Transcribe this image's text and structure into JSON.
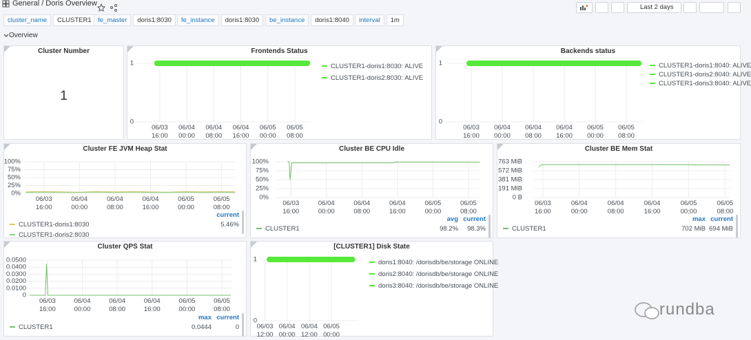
{
  "header": {
    "breadcrumb": "General / Doris Overview",
    "time_range": "Last 2 days"
  },
  "variables": [
    {
      "label": "cluster_name",
      "value": "CLUSTER1"
    },
    {
      "label": "fe_master",
      "value": "doris1:8030"
    },
    {
      "label": "fe_instance",
      "value": "doris1:8030"
    },
    {
      "label": "be_instance",
      "value": "doris1:8040"
    },
    {
      "label": "interval",
      "value": "1m"
    }
  ],
  "row": "Overview",
  "watermark": "rundba",
  "panels": [
    {
      "type": "stat",
      "title": "Cluster Number",
      "value": 1
    },
    {
      "type": "line",
      "title": "Frontends Status",
      "legend": "right",
      "line_width": 8,
      "x": [
        15.2,
        59.7
      ],
      "xlim": [
        9.1,
        60.7
      ],
      "ylim": [
        0,
        1
      ],
      "yticks": [
        0,
        1
      ],
      "xticks": [
        {
          "value": 16,
          "label": "06/03 16:00"
        },
        {
          "value": 24,
          "label": "06/04 00:00"
        },
        {
          "value": 32,
          "label": "06/04 08:00"
        },
        {
          "value": 40,
          "label": "06/04 16:00"
        },
        {
          "value": 48,
          "label": "06/05 00:00"
        },
        {
          "value": 56,
          "label": "06/05 08:00"
        }
      ],
      "series": [
        {
          "name": "CLUSTER1-doris1:8030: ALIVE",
          "color": "#56e83a",
          "values": [
            1,
            1
          ]
        },
        {
          "name": "CLUSTER1-doris2:8030: ALIVE",
          "color": "#56e83a",
          "values": [
            1,
            1
          ]
        }
      ]
    },
    {
      "type": "line",
      "title": "Backends status",
      "legend": "right",
      "line_width": 8,
      "x": [
        15.5,
        59.2
      ],
      "xlim": [
        9.25,
        59.9
      ],
      "ylim": [
        0,
        1
      ],
      "yticks": [
        0,
        1
      ],
      "xticks": [
        {
          "value": 16,
          "label": "06/03 16:00"
        },
        {
          "value": 24,
          "label": "06/04 00:00"
        },
        {
          "value": 32,
          "label": "06/04 08:00"
        },
        {
          "value": 40,
          "label": "06/04 16:00"
        },
        {
          "value": 48,
          "label": "06/05 00:00"
        },
        {
          "value": 56,
          "label": "06/05 08:00"
        }
      ],
      "series": [
        {
          "name": "CLUSTER1-doris1:8040: ALIVE",
          "color": "#56e83a",
          "values": [
            1,
            1
          ]
        },
        {
          "name": "CLUSTER1-doris2:8040: ALIVE",
          "color": "#56e83a",
          "values": [
            1,
            1
          ]
        },
        {
          "name": "CLUSTER1-doris3:8040: ALIVE",
          "color": "#56e83a",
          "values": [
            1,
            1
          ]
        }
      ]
    },
    {
      "type": "line",
      "title": "Cluster FE JVM Heap Stat",
      "legend": "table",
      "line_width": 1,
      "columns": [
        "current"
      ],
      "x": [
        12,
        16,
        20,
        24,
        28,
        32,
        36,
        40,
        44,
        48,
        52,
        56,
        59
      ],
      "xlim": [
        11.7,
        59
      ],
      "ylim": [
        0,
        100
      ],
      "yticks": [
        {
          "value": 0,
          "label": "0%"
        },
        {
          "value": 25,
          "label": "25%"
        },
        {
          "value": 50,
          "label": "50%"
        },
        {
          "value": 75,
          "label": "75%"
        },
        {
          "value": 100,
          "label": "100%"
        }
      ],
      "xticks": [
        {
          "value": 16,
          "label": "06/03 16:00"
        },
        {
          "value": 24,
          "label": "06/04 00:00"
        },
        {
          "value": 32,
          "label": "06/04 08:00"
        },
        {
          "value": 40,
          "label": "06/04 16:00"
        },
        {
          "value": 48,
          "label": "06/05 00:00"
        },
        {
          "value": 56,
          "label": "06/05 08:00"
        }
      ],
      "series": [
        {
          "name": "CLUSTER1-doris1:8030",
          "color": "#d8c96a",
          "values": [
            5,
            6,
            5,
            4,
            6,
            5,
            6,
            5,
            4,
            6,
            5,
            6,
            5.46
          ],
          "stats": [
            {
              "value": 5.46,
              "label": "5.46%"
            }
          ]
        },
        {
          "name": "CLUSTER1-doris2:8030",
          "color": "#8fce7e",
          "values": [
            3,
            4,
            3,
            3,
            4,
            3,
            4,
            3,
            3,
            4,
            3,
            4,
            3
          ]
        }
      ]
    },
    {
      "type": "line",
      "title": "Cluster BE CPU Idle",
      "legend": "table",
      "line_width": 1,
      "columns": [
        "avg",
        "current"
      ],
      "x": [
        15.3,
        15.6,
        15.8,
        16.2,
        24,
        32,
        39,
        39.5,
        48,
        58.5
      ],
      "xlim": [
        12.7,
        58.5
      ],
      "ylim": [
        0,
        100
      ],
      "yticks": [
        {
          "value": 0,
          "label": "0%"
        },
        {
          "value": 25,
          "label": "25%"
        },
        {
          "value": 50,
          "label": "50%"
        },
        {
          "value": 75,
          "label": "75%"
        },
        {
          "value": 100,
          "label": "100%"
        }
      ],
      "xticks": [
        {
          "value": 16,
          "label": "06/03 16:00"
        },
        {
          "value": 24,
          "label": "06/04 00:00"
        },
        {
          "value": 32,
          "label": "06/04 08:00"
        },
        {
          "value": 40,
          "label": "06/04 16:00"
        },
        {
          "value": 48,
          "label": "06/05 00:00"
        },
        {
          "value": 56,
          "label": "06/05 08:00"
        }
      ],
      "series": [
        {
          "name": "CLUSTER1",
          "color": "#73bf69",
          "values": [
            100,
            100,
            50,
            97,
            97,
            97,
            97,
            99,
            99,
            98.3
          ],
          "stats": [
            {
              "value": 98.2,
              "label": "98.2%"
            },
            {
              "value": 98.3,
              "label": "98.3%"
            }
          ]
        }
      ]
    },
    {
      "type": "line",
      "title": "Cluster BE Mem Stat",
      "legend": "table",
      "line_width": 1,
      "columns": [
        "max",
        "current"
      ],
      "x": [
        15.2,
        15.5,
        16,
        24,
        32,
        40,
        48,
        57
      ],
      "xlim": [
        13.9,
        57
      ],
      "ylim": [
        0,
        763
      ],
      "yticks": [
        {
          "value": 0,
          "label": "0 B"
        },
        {
          "value": 191,
          "label": "191 MiB"
        },
        {
          "value": 381,
          "label": "381 MiB"
        },
        {
          "value": 572,
          "label": "572 MiB"
        },
        {
          "value": 763,
          "label": "763 MiB"
        }
      ],
      "xticks": [
        {
          "value": 16,
          "label": "06/03 16:00"
        },
        {
          "value": 24,
          "label": "06/04 00:00"
        },
        {
          "value": 32,
          "label": "06/04 08:00"
        },
        {
          "value": 40,
          "label": "06/04 16:00"
        },
        {
          "value": 48,
          "label": "06/05 00:00"
        },
        {
          "value": 56,
          "label": "06/05 08:00"
        }
      ],
      "series": [
        {
          "name": "CLUSTER1",
          "color": "#73bf69",
          "values": [
            650,
            690,
            700,
            700,
            700,
            702,
            698,
            694
          ],
          "stats": [
            {
              "value": 702,
              "label": "702 MiB"
            },
            {
              "value": 694,
              "label": "694 MiB"
            }
          ]
        }
      ]
    },
    {
      "type": "line",
      "title": "Cluster QPS Stat",
      "legend": "table",
      "line_width": 1,
      "columns": [
        "max",
        "current"
      ],
      "x": [
        12,
        14,
        15.5,
        15.8,
        16.1,
        18,
        24,
        32,
        40,
        48,
        58
      ],
      "xlim": [
        11.6,
        58.2
      ],
      "ylim": [
        0,
        0.05
      ],
      "yticks": [
        0,
        {
          "value": 0.01,
          "label": "0.0100"
        },
        {
          "value": 0.02,
          "label": "0.0200"
        },
        {
          "value": 0.03,
          "label": "0.0300"
        },
        {
          "value": 0.04,
          "label": "0.0400"
        },
        {
          "value": 0.05,
          "label": "0.0500"
        }
      ],
      "xticks": [
        {
          "value": 16,
          "label": "06/03 16:00"
        },
        {
          "value": 24,
          "label": "06/04 00:00"
        },
        {
          "value": 32,
          "label": "06/04 08:00"
        },
        {
          "value": 40,
          "label": "06/04 16:00"
        },
        {
          "value": 48,
          "label": "06/05 00:00"
        },
        {
          "value": 56,
          "label": "06/05 08:00"
        }
      ],
      "series": [
        {
          "name": "CLUSTER1",
          "color": "#73bf69",
          "values": [
            0,
            0,
            0,
            0.0444,
            0,
            0,
            0,
            0,
            0,
            0,
            0
          ],
          "stats": [
            {
              "value": 0.0444,
              "label": "0.0444"
            },
            0
          ]
        }
      ]
    },
    {
      "type": "line",
      "title": "[CLUSTER1] Disk State",
      "legend": "right",
      "line_width": 8,
      "x": [
        14.5,
        59.3
      ],
      "xlim": [
        9.2,
        62.9
      ],
      "ylim": [
        0,
        1
      ],
      "yticks": [
        0,
        1
      ],
      "xticks": [
        {
          "value": 12,
          "label": "06/03 12:00"
        },
        {
          "value": 24,
          "label": "06/04 00:00"
        },
        {
          "value": 36,
          "label": "06/04 12:00"
        },
        {
          "value": 48,
          "label": "06/05 00:00"
        }
      ],
      "series": [
        {
          "name": "doris1:8040: /dorisdb/be/storage ONLINE",
          "color": "#56e83a",
          "values": [
            1,
            1
          ]
        },
        {
          "name": "doris2:8040: /dorisdb/be/storage ONLINE",
          "color": "#56e83a",
          "values": [
            1,
            1
          ]
        },
        {
          "name": "doris3:8040: /dorisdb/be/storage ONLINE",
          "color": "#56e83a",
          "values": [
            1,
            1
          ]
        }
      ]
    }
  ]
}
